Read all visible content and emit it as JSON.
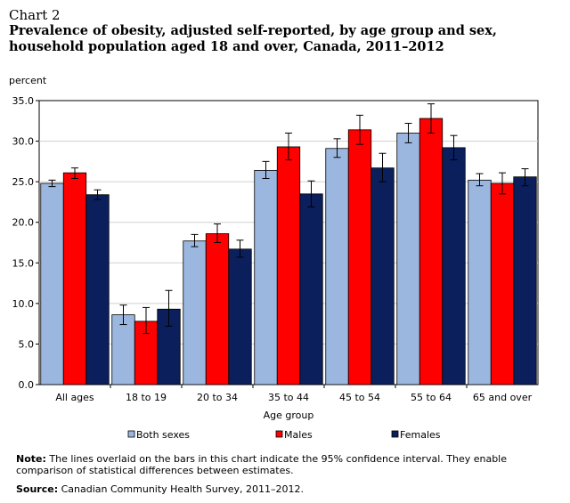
{
  "header": {
    "chart_label": "Chart 2",
    "title": "Prevalence of obesity, adjusted self-reported, by age group and sex, household population aged 18 and over, Canada, 2011–2012"
  },
  "footer": {
    "note_label": "Note:",
    "note_text": " The lines overlaid on the bars in this chart indicate the 95% confidence interval. They enable comparison of statistical differences between estimates.",
    "source_label": "Source:",
    "source_text": " Canadian Community Health Survey, 2011–2012."
  },
  "colors": {
    "both": "#9bb7e0",
    "males": "#ff0000",
    "females": "#0a1f5c"
  },
  "chart_data": {
    "type": "bar",
    "ylabel": "percent",
    "xlabel": "Age group",
    "ylim": [
      0,
      35
    ],
    "yticks": [
      "0.0",
      "5.0",
      "10.0",
      "15.0",
      "20.0",
      "25.0",
      "30.0",
      "35.0"
    ],
    "grid": true,
    "legend": "bottom",
    "categories": [
      "All ages",
      "18 to 19",
      "20 to 34",
      "35 to 44",
      "45 to 54",
      "55 to 64",
      "65 and over"
    ],
    "series": [
      {
        "name": "Both sexes",
        "color": "#9bb7e0",
        "values": [
          24.8,
          8.6,
          17.7,
          26.4,
          29.1,
          31.0,
          25.2
        ],
        "ci_low": [
          24.4,
          7.4,
          17.0,
          25.4,
          28.0,
          29.8,
          24.5
        ],
        "ci_high": [
          25.2,
          9.8,
          18.5,
          27.5,
          30.3,
          32.2,
          26.0
        ]
      },
      {
        "name": "Males",
        "color": "#ff0000",
        "values": [
          26.1,
          7.8,
          18.6,
          29.3,
          31.4,
          32.8,
          24.8
        ],
        "ci_low": [
          25.4,
          6.3,
          17.5,
          27.7,
          29.6,
          31.0,
          23.5
        ],
        "ci_high": [
          26.7,
          9.5,
          19.8,
          31.0,
          33.2,
          34.6,
          26.1
        ]
      },
      {
        "name": "Females",
        "color": "#0a1f5c",
        "values": [
          23.4,
          9.3,
          16.7,
          23.5,
          26.7,
          29.2,
          25.6
        ],
        "ci_low": [
          22.8,
          7.2,
          15.7,
          21.9,
          25.0,
          27.7,
          24.5
        ],
        "ci_high": [
          24.0,
          11.6,
          17.8,
          25.1,
          28.5,
          30.7,
          26.6
        ]
      }
    ]
  }
}
